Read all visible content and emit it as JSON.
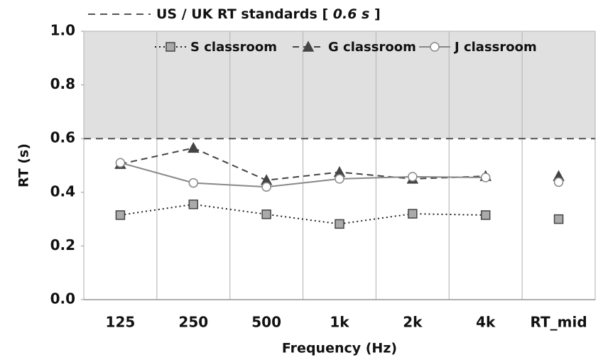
{
  "chart_data": {
    "type": "line",
    "x_label": "Frequency (Hz)",
    "y_label": "RT (s)",
    "categories": [
      "125",
      "250",
      "500",
      "1k",
      "2k",
      "4k",
      "RT_mid"
    ],
    "ylim": [
      0,
      1
    ],
    "yticks": [
      {
        "value": 0,
        "label": "0.0"
      },
      0.2,
      0.4,
      0.6,
      0.8,
      {
        "value": 1,
        "label": "1.0"
      }
    ],
    "grid": true,
    "threshold": {
      "value": 0.6,
      "text": "US / UK RT standards [",
      "value_text": "0.6 s",
      "close": "]",
      "color": "#555",
      "shade": "#e0e0e0"
    },
    "legend": "top",
    "series": [
      {
        "name": "S classroom",
        "color": "#222",
        "marker": "square",
        "marker_fill": "#aaa",
        "dash": "2 4",
        "values": [
          0.315,
          0.355,
          0.318,
          0.282,
          0.32,
          0.315,
          0.3
        ]
      },
      {
        "name": "G classroom",
        "color": "#444",
        "marker": "triangle",
        "marker_fill": "#444",
        "dash": "9 6",
        "values": [
          0.505,
          0.565,
          0.445,
          0.475,
          0.45,
          0.46,
          0.46
        ]
      },
      {
        "name": "J classroom",
        "color": "#888",
        "marker": "circle",
        "marker_fill": "#fff",
        "dash": "",
        "values": [
          0.51,
          0.435,
          0.42,
          0.45,
          0.458,
          0.455,
          0.438
        ]
      }
    ]
  }
}
